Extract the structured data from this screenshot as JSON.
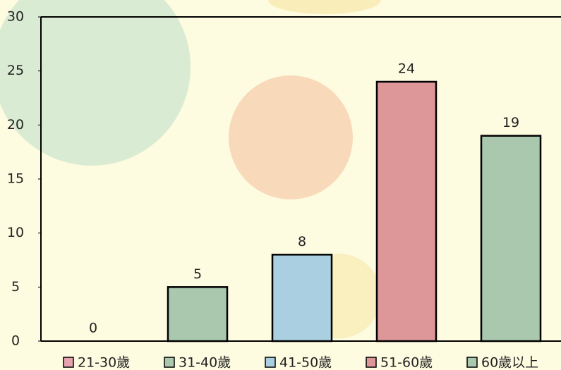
{
  "chart_data": {
    "type": "bar",
    "categories": [
      "21-30歲",
      "31-40歲",
      "41-50歲",
      "51-60歲",
      "60歲以上"
    ],
    "values": [
      0,
      5,
      8,
      24,
      19
    ],
    "colors": [
      "#e8a3b0",
      "#a9c8ae",
      "#aacfe0",
      "#dd9799",
      "#a9c8ae"
    ],
    "ylim": [
      0,
      30
    ],
    "yticks": [
      0,
      5,
      10,
      15,
      20,
      25,
      30
    ]
  }
}
